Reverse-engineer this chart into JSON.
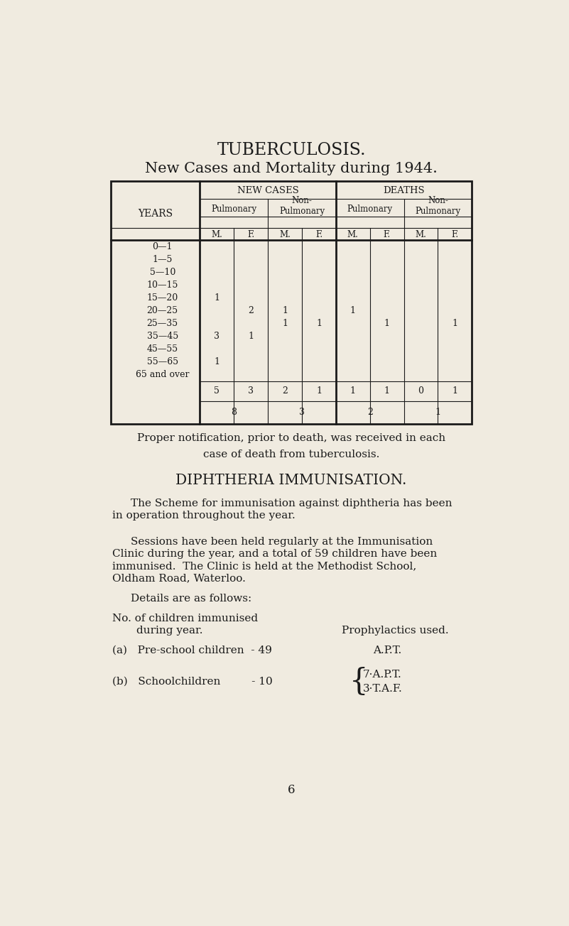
{
  "bg_color": "#f0ebe0",
  "text_color": "#1a1a1a",
  "title1": "TUBERCULOSIS.",
  "title2": "New Cases and Mortality during 1944.",
  "table_header1": "NEW CASES",
  "table_header2": "DEATHS",
  "sub_headers": [
    "M.",
    "F.",
    "M.",
    "F.",
    "M.",
    "F.",
    "M.",
    "F."
  ],
  "years_col": [
    "0—1",
    "1—5",
    "5—10",
    "10—15",
    "15—20",
    "20—25",
    "25—35",
    "35—45",
    "45—55",
    "55—65",
    "65 and over"
  ],
  "data": [
    [
      "",
      "",
      "",
      "",
      "",
      "",
      "",
      ""
    ],
    [
      "",
      "",
      "",
      "",
      "",
      "",
      "",
      ""
    ],
    [
      "",
      "",
      "",
      "",
      "",
      "",
      "",
      ""
    ],
    [
      "",
      "",
      "",
      "",
      "",
      "",
      "",
      ""
    ],
    [
      "1",
      "",
      "",
      "",
      "",
      "",
      "",
      ""
    ],
    [
      "",
      "2",
      "1",
      "",
      "1",
      "",
      "",
      ""
    ],
    [
      "",
      "",
      "1",
      "1",
      "",
      "1",
      "",
      "1"
    ],
    [
      "3",
      "1",
      "",
      "",
      "",
      "",
      "",
      ""
    ],
    [
      "",
      "",
      "",
      "",
      "",
      "",
      "",
      ""
    ],
    [
      "1",
      "",
      "",
      "",
      "",
      "",
      "",
      ""
    ],
    [
      "",
      "",
      "",
      "",
      "",
      "",
      "",
      ""
    ]
  ],
  "totals_row1": [
    "5",
    "3",
    "2",
    "1",
    "1",
    "1",
    "0",
    "1"
  ],
  "totals_row2": [
    "8",
    "3",
    "2",
    "1"
  ],
  "diph_title": "DIPHTHERIA IMMUNISATION.",
  "page_number": "6"
}
